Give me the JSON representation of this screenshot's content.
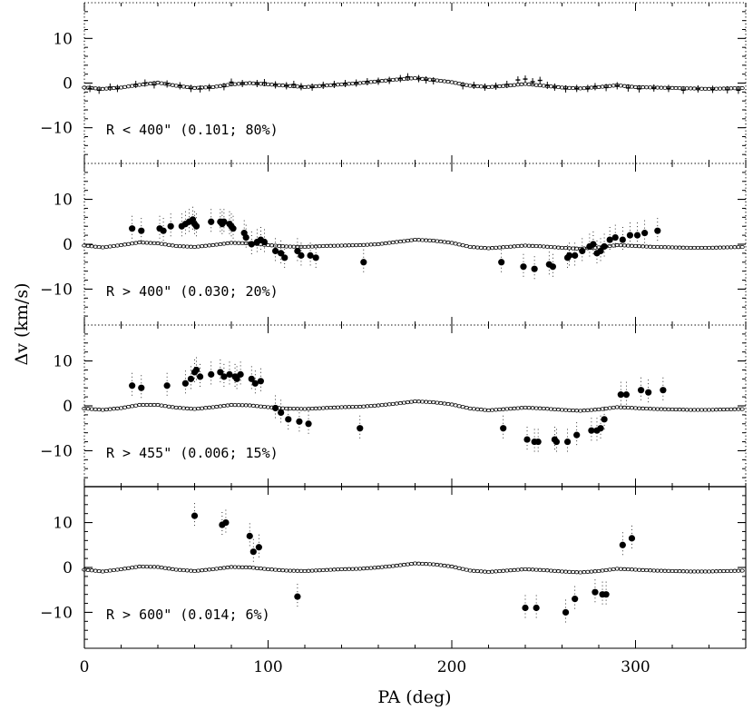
{
  "chart_data": {
    "type": "scatter",
    "xlabel": "PA (deg)",
    "ylabel": "Δv  (km/s)",
    "xlim": [
      0,
      360
    ],
    "x_ticks": [
      0,
      100,
      200,
      300
    ],
    "x_tick_labels": [
      "0",
      "100",
      "200",
      "300"
    ],
    "ylim": [
      -18,
      18
    ],
    "y_ticks": [
      -10,
      0,
      10
    ],
    "y_tick_labels": [
      "−10",
      "0",
      "10"
    ],
    "top_panel_y_tick_labels": [
      "−10",
      "0",
      "10"
    ],
    "panels": [
      {
        "annotation": "R < 400\" (0.101; 80%)",
        "frame": "dotted",
        "model": [
          [
            0,
            -1
          ],
          [
            10,
            -1.3
          ],
          [
            20,
            -1
          ],
          [
            30,
            -0.4
          ],
          [
            40,
            0.1
          ],
          [
            50,
            -0.6
          ],
          [
            60,
            -1.1
          ],
          [
            70,
            -0.9
          ],
          [
            80,
            -0.3
          ],
          [
            90,
            0
          ],
          [
            100,
            -0.3
          ],
          [
            110,
            -0.6
          ],
          [
            120,
            -0.9
          ],
          [
            130,
            -0.6
          ],
          [
            140,
            -0.3
          ],
          [
            150,
            0
          ],
          [
            160,
            0.4
          ],
          [
            170,
            0.8
          ],
          [
            180,
            1.1
          ],
          [
            190,
            0.7
          ],
          [
            200,
            0.2
          ],
          [
            210,
            -0.6
          ],
          [
            220,
            -0.9
          ],
          [
            230,
            -0.6
          ],
          [
            240,
            -0.2
          ],
          [
            250,
            -0.6
          ],
          [
            260,
            -1
          ],
          [
            270,
            -1.2
          ],
          [
            280,
            -0.9
          ],
          [
            290,
            -0.5
          ],
          [
            300,
            -0.9
          ],
          [
            310,
            -1
          ],
          [
            320,
            -1.1
          ],
          [
            330,
            -1.2
          ],
          [
            340,
            -1.3
          ],
          [
            350,
            -1.2
          ],
          [
            360,
            -1.1
          ]
        ],
        "data": [
          [
            3,
            -1.2
          ],
          [
            8,
            -1.6
          ],
          [
            14,
            -0.9
          ],
          [
            18,
            -1.2
          ],
          [
            28,
            -0.3
          ],
          [
            33,
            0
          ],
          [
            38,
            -0.4
          ],
          [
            45,
            -0.2
          ],
          [
            52,
            -0.6
          ],
          [
            58,
            -1.2
          ],
          [
            63,
            -1.3
          ],
          [
            68,
            -1
          ],
          [
            76,
            -0.8
          ],
          [
            80,
            0.2
          ],
          [
            86,
            -0.1
          ],
          [
            94,
            -0.1
          ],
          [
            98,
            0.1
          ],
          [
            104,
            -0.4
          ],
          [
            110,
            -0.6
          ],
          [
            114,
            -0.3
          ],
          [
            118,
            -0.8
          ],
          [
            124,
            -0.9
          ],
          [
            130,
            -0.5
          ],
          [
            136,
            -0.3
          ],
          [
            142,
            -0.1
          ],
          [
            148,
            0
          ],
          [
            154,
            0.3
          ],
          [
            160,
            0.4
          ],
          [
            166,
            0.6
          ],
          [
            172,
            1
          ],
          [
            176,
            1.4
          ],
          [
            182,
            1
          ],
          [
            186,
            0.7
          ],
          [
            190,
            0.5
          ],
          [
            206,
            -0.6
          ],
          [
            212,
            -0.5
          ],
          [
            218,
            -0.9
          ],
          [
            224,
            -0.7
          ],
          [
            230,
            -0.3
          ],
          [
            236,
            0.7
          ],
          [
            240,
            0.9
          ],
          [
            244,
            0.3
          ],
          [
            248,
            0.6
          ],
          [
            252,
            -0.5
          ],
          [
            256,
            -0.9
          ],
          [
            262,
            -1.3
          ],
          [
            268,
            -1.2
          ],
          [
            274,
            -1.2
          ],
          [
            278,
            -0.8
          ],
          [
            284,
            -1
          ],
          [
            290,
            -0.6
          ],
          [
            296,
            -1.1
          ],
          [
            302,
            -1.3
          ],
          [
            310,
            -1.1
          ],
          [
            318,
            -1.2
          ],
          [
            326,
            -1.6
          ],
          [
            334,
            -1.3
          ],
          [
            342,
            -1.4
          ],
          [
            350,
            -1.5
          ],
          [
            356,
            -1.6
          ]
        ]
      },
      {
        "annotation": "R > 400\" (0.030; 20%)",
        "frame": "dotted",
        "model": [
          [
            0,
            -0.3
          ],
          [
            10,
            -0.7
          ],
          [
            20,
            -0.2
          ],
          [
            30,
            0.4
          ],
          [
            40,
            0.2
          ],
          [
            50,
            -0.4
          ],
          [
            60,
            -0.6
          ],
          [
            70,
            -0.2
          ],
          [
            80,
            0.3
          ],
          [
            90,
            0.2
          ],
          [
            100,
            -0.2
          ],
          [
            110,
            -0.5
          ],
          [
            120,
            -0.6
          ],
          [
            130,
            -0.4
          ],
          [
            140,
            -0.3
          ],
          [
            150,
            -0.2
          ],
          [
            160,
            0
          ],
          [
            170,
            0.5
          ],
          [
            180,
            1
          ],
          [
            190,
            0.8
          ],
          [
            200,
            0.3
          ],
          [
            210,
            -0.6
          ],
          [
            220,
            -0.9
          ],
          [
            230,
            -0.6
          ],
          [
            240,
            -0.3
          ],
          [
            250,
            -0.5
          ],
          [
            260,
            -0.8
          ],
          [
            270,
            -1
          ],
          [
            280,
            -0.7
          ],
          [
            290,
            -0.2
          ],
          [
            300,
            -0.4
          ],
          [
            310,
            -0.6
          ],
          [
            320,
            -0.7
          ],
          [
            330,
            -0.8
          ],
          [
            340,
            -0.8
          ],
          [
            350,
            -0.7
          ],
          [
            360,
            -0.6
          ]
        ],
        "data": [
          [
            26,
            3.5
          ],
          [
            31,
            3
          ],
          [
            41,
            3.5
          ],
          [
            43,
            3
          ],
          [
            47,
            4
          ],
          [
            53,
            4
          ],
          [
            55,
            4.5
          ],
          [
            57,
            5
          ],
          [
            59,
            5.5
          ],
          [
            60,
            4.5
          ],
          [
            61,
            4
          ],
          [
            69,
            5
          ],
          [
            74,
            5
          ],
          [
            75,
            4.5
          ],
          [
            76,
            5
          ],
          [
            79,
            4.5
          ],
          [
            80,
            4
          ],
          [
            81,
            3.5
          ],
          [
            87,
            2.5
          ],
          [
            88,
            1.5
          ],
          [
            91,
            0
          ],
          [
            94,
            0.5
          ],
          [
            96,
            1
          ],
          [
            98,
            0.5
          ],
          [
            104,
            -1.5
          ],
          [
            107,
            -2
          ],
          [
            109,
            -3
          ],
          [
            116,
            -1.5
          ],
          [
            118,
            -2.5
          ],
          [
            123,
            -2.5
          ],
          [
            126,
            -3
          ],
          [
            152,
            -4
          ],
          [
            227,
            -4
          ],
          [
            239,
            -5
          ],
          [
            245,
            -5.5
          ],
          [
            253,
            -4.5
          ],
          [
            255,
            -5
          ],
          [
            263,
            -3
          ],
          [
            264,
            -2.5
          ],
          [
            267,
            -2.5
          ],
          [
            271,
            -1.5
          ],
          [
            275,
            -0.5
          ],
          [
            277,
            0
          ],
          [
            279,
            -2
          ],
          [
            281,
            -1.5
          ],
          [
            283,
            -0.5
          ],
          [
            286,
            1
          ],
          [
            289,
            1.5
          ],
          [
            293,
            1
          ],
          [
            297,
            2
          ],
          [
            301,
            2
          ],
          [
            305,
            2.5
          ],
          [
            312,
            3
          ]
        ]
      },
      {
        "annotation": "R > 455\" (0.006; 15%)",
        "frame": "dotted",
        "model": [
          [
            0,
            -0.6
          ],
          [
            10,
            -0.9
          ],
          [
            20,
            -0.5
          ],
          [
            30,
            0.2
          ],
          [
            40,
            0.2
          ],
          [
            50,
            -0.4
          ],
          [
            60,
            -0.7
          ],
          [
            70,
            -0.3
          ],
          [
            80,
            0.2
          ],
          [
            90,
            0.1
          ],
          [
            100,
            -0.3
          ],
          [
            110,
            -0.6
          ],
          [
            120,
            -0.7
          ],
          [
            130,
            -0.5
          ],
          [
            140,
            -0.3
          ],
          [
            150,
            -0.2
          ],
          [
            160,
            0.1
          ],
          [
            170,
            0.5
          ],
          [
            180,
            1
          ],
          [
            190,
            0.8
          ],
          [
            200,
            0.3
          ],
          [
            210,
            -0.6
          ],
          [
            220,
            -1
          ],
          [
            230,
            -0.7
          ],
          [
            240,
            -0.4
          ],
          [
            250,
            -0.6
          ],
          [
            260,
            -0.9
          ],
          [
            270,
            -1.1
          ],
          [
            280,
            -0.8
          ],
          [
            290,
            -0.3
          ],
          [
            300,
            -0.5
          ],
          [
            310,
            -0.7
          ],
          [
            320,
            -0.8
          ],
          [
            330,
            -0.9
          ],
          [
            340,
            -0.9
          ],
          [
            350,
            -0.8
          ],
          [
            360,
            -0.7
          ]
        ],
        "data": [
          [
            26,
            4.5
          ],
          [
            31,
            4
          ],
          [
            45,
            4.5
          ],
          [
            55,
            5
          ],
          [
            58,
            6
          ],
          [
            60,
            7.5
          ],
          [
            61,
            8
          ],
          [
            63,
            6.5
          ],
          [
            69,
            7
          ],
          [
            74,
            7.5
          ],
          [
            76,
            6.5
          ],
          [
            79,
            7
          ],
          [
            82,
            6.5
          ],
          [
            83,
            6
          ],
          [
            85,
            7
          ],
          [
            91,
            6
          ],
          [
            93,
            5
          ],
          [
            96,
            5.5
          ],
          [
            104,
            -0.5
          ],
          [
            107,
            -1.5
          ],
          [
            111,
            -3
          ],
          [
            117,
            -3.5
          ],
          [
            122,
            -4
          ],
          [
            150,
            -5
          ],
          [
            228,
            -5
          ],
          [
            241,
            -7.5
          ],
          [
            245,
            -8
          ],
          [
            247,
            -8
          ],
          [
            256,
            -7.5
          ],
          [
            257,
            -8
          ],
          [
            263,
            -8
          ],
          [
            268,
            -6.5
          ],
          [
            276,
            -5.5
          ],
          [
            279,
            -5.5
          ],
          [
            281,
            -5
          ],
          [
            283,
            -3
          ],
          [
            292,
            2.5
          ],
          [
            295,
            2.5
          ],
          [
            303,
            3.5
          ],
          [
            307,
            3
          ],
          [
            315,
            3.5
          ]
        ]
      },
      {
        "annotation": "R > 600\" (0.014; 6%)",
        "frame": "solid",
        "model": [
          [
            0,
            -0.5
          ],
          [
            10,
            -0.9
          ],
          [
            20,
            -0.4
          ],
          [
            30,
            0.2
          ],
          [
            40,
            0.1
          ],
          [
            50,
            -0.5
          ],
          [
            60,
            -0.8
          ],
          [
            70,
            -0.4
          ],
          [
            80,
            0.1
          ],
          [
            90,
            0
          ],
          [
            100,
            -0.4
          ],
          [
            110,
            -0.7
          ],
          [
            120,
            -0.8
          ],
          [
            130,
            -0.6
          ],
          [
            140,
            -0.4
          ],
          [
            150,
            -0.3
          ],
          [
            160,
            0
          ],
          [
            170,
            0.4
          ],
          [
            180,
            0.9
          ],
          [
            190,
            0.7
          ],
          [
            200,
            0.2
          ],
          [
            210,
            -0.7
          ],
          [
            220,
            -1
          ],
          [
            230,
            -0.7
          ],
          [
            240,
            -0.4
          ],
          [
            250,
            -0.6
          ],
          [
            260,
            -0.9
          ],
          [
            270,
            -1.1
          ],
          [
            280,
            -0.8
          ],
          [
            290,
            -0.3
          ],
          [
            300,
            -0.5
          ],
          [
            310,
            -0.7
          ],
          [
            320,
            -0.8
          ],
          [
            330,
            -0.9
          ],
          [
            340,
            -0.9
          ],
          [
            350,
            -0.8
          ],
          [
            360,
            -0.7
          ]
        ],
        "data": [
          [
            60,
            11.5
          ],
          [
            75,
            9.5
          ],
          [
            77,
            10
          ],
          [
            90,
            7
          ],
          [
            92,
            3.5
          ],
          [
            95,
            4.5
          ],
          [
            116,
            -6.5
          ],
          [
            240,
            -9
          ],
          [
            246,
            -9
          ],
          [
            262,
            -10
          ],
          [
            267,
            -7
          ],
          [
            278,
            -5.5
          ],
          [
            282,
            -6
          ],
          [
            284,
            -6
          ],
          [
            293,
            5
          ],
          [
            298,
            6.5
          ]
        ]
      }
    ]
  }
}
